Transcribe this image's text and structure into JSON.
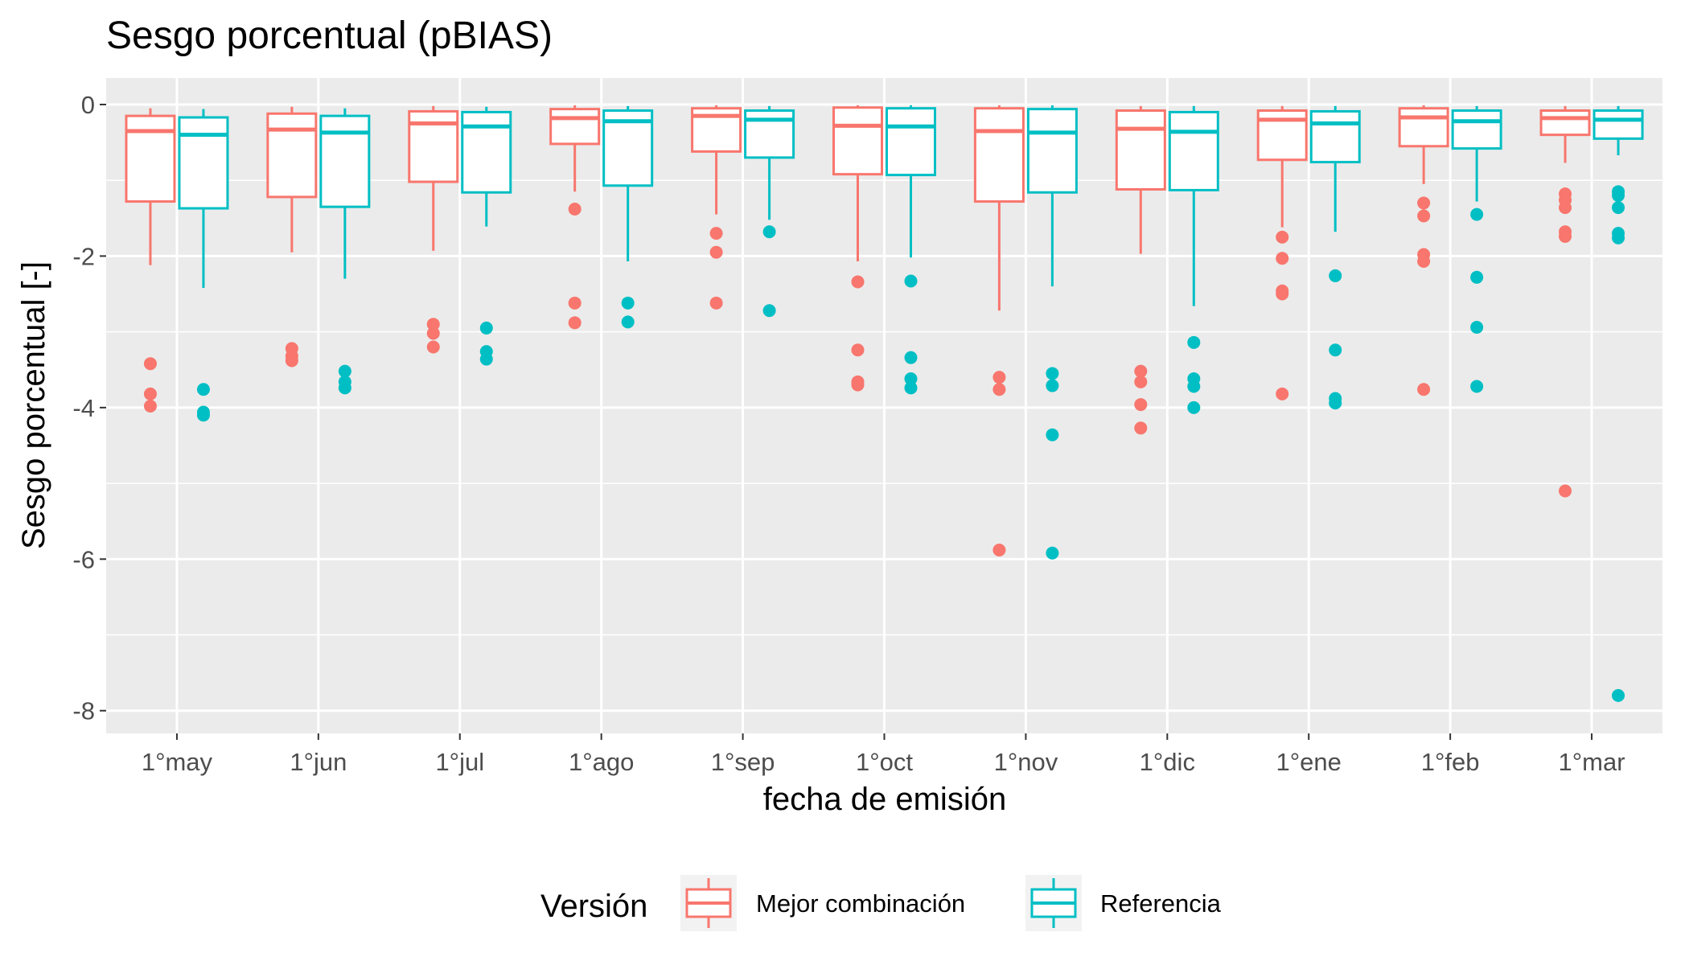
{
  "chart_data": {
    "type": "boxplot",
    "title": "Sesgo porcentual (pBIAS)",
    "xlabel": "fecha de emisión",
    "ylabel": "Sesgo porcentual [-]",
    "ylim": [
      -8.3,
      0.35
    ],
    "yticks": [
      0,
      -2,
      -4,
      -6,
      -8
    ],
    "ytick_labels": [
      "0",
      "-2",
      "-4",
      "-6",
      "-8"
    ],
    "categories": [
      "1°may",
      "1°jun",
      "1°jul",
      "1°ago",
      "1°sep",
      "1°oct",
      "1°nov",
      "1°dic",
      "1°ene",
      "1°feb",
      "1°mar"
    ],
    "grid": true,
    "legend": {
      "title": "Versión",
      "position": "bottom"
    },
    "series": [
      {
        "name": "Mejor combinación",
        "color": "#F8766D",
        "boxes": [
          {
            "lower": -2.12,
            "q1": -1.28,
            "median": -0.35,
            "q3": -0.15,
            "upper": -0.05,
            "outliers": [
              -3.42,
              -3.82,
              -3.98
            ]
          },
          {
            "lower": -1.95,
            "q1": -1.22,
            "median": -0.33,
            "q3": -0.12,
            "upper": -0.03,
            "outliers": [
              -3.22,
              -3.32,
              -3.38
            ]
          },
          {
            "lower": -1.93,
            "q1": -1.02,
            "median": -0.25,
            "q3": -0.09,
            "upper": -0.02,
            "outliers": [
              -2.9,
              -3.02,
              -3.2
            ]
          },
          {
            "lower": -1.15,
            "q1": -0.52,
            "median": -0.18,
            "q3": -0.06,
            "upper": -0.01,
            "outliers": [
              -1.38,
              -2.62,
              -2.88
            ]
          },
          {
            "lower": -1.45,
            "q1": -0.62,
            "median": -0.15,
            "q3": -0.05,
            "upper": -0.01,
            "outliers": [
              -1.7,
              -1.95,
              -2.62
            ]
          },
          {
            "lower": -2.07,
            "q1": -0.92,
            "median": -0.28,
            "q3": -0.04,
            "upper": -0.01,
            "outliers": [
              -2.34,
              -3.24,
              -3.66,
              -3.7
            ]
          },
          {
            "lower": -2.72,
            "q1": -1.28,
            "median": -0.35,
            "q3": -0.05,
            "upper": -0.01,
            "outliers": [
              -3.6,
              -3.76,
              -5.88
            ]
          },
          {
            "lower": -1.97,
            "q1": -1.12,
            "median": -0.32,
            "q3": -0.08,
            "upper": -0.02,
            "outliers": [
              -3.52,
              -3.66,
              -3.96,
              -4.27
            ]
          },
          {
            "lower": -1.62,
            "q1": -0.73,
            "median": -0.2,
            "q3": -0.08,
            "upper": -0.02,
            "outliers": [
              -1.75,
              -2.03,
              -2.46,
              -2.5,
              -3.82
            ]
          },
          {
            "lower": -1.05,
            "q1": -0.55,
            "median": -0.17,
            "q3": -0.05,
            "upper": -0.01,
            "outliers": [
              -1.3,
              -1.47,
              -1.98,
              -2.07,
              -3.76
            ]
          },
          {
            "lower": -0.77,
            "q1": -0.4,
            "median": -0.18,
            "q3": -0.08,
            "upper": -0.02,
            "outliers": [
              -1.18,
              -1.26,
              -1.36,
              -1.68,
              -1.74,
              -5.1
            ]
          }
        ]
      },
      {
        "name": "Referencia",
        "color": "#00BFC4",
        "boxes": [
          {
            "lower": -2.42,
            "q1": -1.37,
            "median": -0.4,
            "q3": -0.17,
            "upper": -0.06,
            "outliers": [
              -3.76,
              -4.06,
              -4.1
            ]
          },
          {
            "lower": -2.3,
            "q1": -1.35,
            "median": -0.37,
            "q3": -0.15,
            "upper": -0.05,
            "outliers": [
              -3.52,
              -3.66,
              -3.74
            ]
          },
          {
            "lower": -1.61,
            "q1": -1.16,
            "median": -0.29,
            "q3": -0.1,
            "upper": -0.03,
            "outliers": [
              -2.95,
              -3.26,
              -3.36
            ]
          },
          {
            "lower": -2.07,
            "q1": -1.07,
            "median": -0.22,
            "q3": -0.08,
            "upper": -0.02,
            "outliers": [
              -2.62,
              -2.87
            ]
          },
          {
            "lower": -1.52,
            "q1": -0.7,
            "median": -0.2,
            "q3": -0.08,
            "upper": -0.02,
            "outliers": [
              -1.68,
              -2.72
            ]
          },
          {
            "lower": -2.02,
            "q1": -0.93,
            "median": -0.29,
            "q3": -0.05,
            "upper": -0.01,
            "outliers": [
              -2.33,
              -3.34,
              -3.62,
              -3.74
            ]
          },
          {
            "lower": -2.4,
            "q1": -1.16,
            "median": -0.37,
            "q3": -0.06,
            "upper": -0.01,
            "outliers": [
              -3.55,
              -3.71,
              -4.36,
              -5.92
            ]
          },
          {
            "lower": -2.66,
            "q1": -1.13,
            "median": -0.36,
            "q3": -0.1,
            "upper": -0.02,
            "outliers": [
              -3.14,
              -3.62,
              -3.72,
              -4.0
            ]
          },
          {
            "lower": -1.68,
            "q1": -0.76,
            "median": -0.25,
            "q3": -0.09,
            "upper": -0.02,
            "outliers": [
              -2.26,
              -3.24,
              -3.88,
              -3.94
            ]
          },
          {
            "lower": -1.28,
            "q1": -0.58,
            "median": -0.22,
            "q3": -0.08,
            "upper": -0.02,
            "outliers": [
              -1.45,
              -2.28,
              -2.94,
              -3.72
            ]
          },
          {
            "lower": -0.67,
            "q1": -0.45,
            "median": -0.2,
            "q3": -0.08,
            "upper": -0.02,
            "outliers": [
              -1.15,
              -1.2,
              -1.36,
              -1.7,
              -1.76,
              -7.8
            ]
          }
        ]
      }
    ]
  }
}
